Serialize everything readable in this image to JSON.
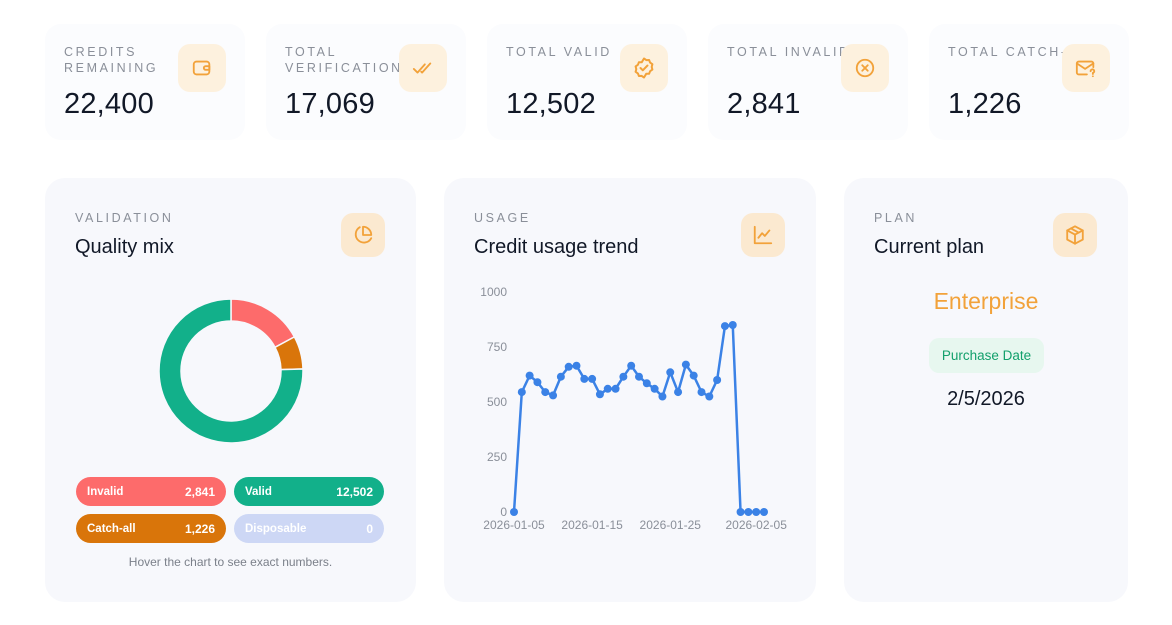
{
  "stats": [
    {
      "label": "CREDITS REMAINING",
      "value": "22,400",
      "icon": "wallet-icon"
    },
    {
      "label": "TOTAL VERIFICATIONS",
      "value": "17,069",
      "icon": "double-check-icon"
    },
    {
      "label": "TOTAL VALID",
      "value": "12,502",
      "icon": "verified-badge-icon"
    },
    {
      "label": "TOTAL INVALID",
      "value": "2,841",
      "icon": "x-circle-icon"
    },
    {
      "label": "TOTAL CATCH-ALL",
      "value": "1,226",
      "icon": "mail-question-icon"
    }
  ],
  "validation": {
    "kicker": "VALIDATION",
    "title": "Quality mix",
    "icon": "pie-chart-icon",
    "legend": [
      {
        "label": "Invalid",
        "value": "2,841",
        "color": "#fd6b6b"
      },
      {
        "label": "Valid",
        "value": "12,502",
        "color": "#12b08a"
      },
      {
        "label": "Catch-all",
        "value": "1,226",
        "color": "#d9750a"
      },
      {
        "label": "Disposable",
        "value": "0",
        "color": "#cdd7f5"
      }
    ],
    "hint": "Hover the chart to see exact numbers."
  },
  "usage": {
    "kicker": "USAGE",
    "title": "Credit usage trend",
    "icon": "line-chart-icon"
  },
  "plan": {
    "kicker": "PLAN",
    "title": "Current plan",
    "icon": "box-icon",
    "name": "Enterprise",
    "purchase_label": "Purchase Date",
    "purchase_date": "2/5/2026"
  },
  "chart_data": [
    {
      "type": "pie",
      "variant": "donut",
      "labels": [
        "Invalid",
        "Catch-all",
        "Valid",
        "Disposable"
      ],
      "values": [
        2841,
        1226,
        12502,
        0
      ],
      "colors": [
        "#fd6b6b",
        "#d9750a",
        "#12b08a",
        "#cdd7f5"
      ]
    },
    {
      "type": "line",
      "x": [
        "2026-01-05",
        "2026-01-06",
        "2026-01-07",
        "2026-01-08",
        "2026-01-09",
        "2026-01-10",
        "2026-01-11",
        "2026-01-12",
        "2026-01-13",
        "2026-01-14",
        "2026-01-15",
        "2026-01-16",
        "2026-01-17",
        "2026-01-18",
        "2026-01-19",
        "2026-01-20",
        "2026-01-21",
        "2026-01-22",
        "2026-01-23",
        "2026-01-24",
        "2026-01-25",
        "2026-01-26",
        "2026-01-27",
        "2026-01-28",
        "2026-01-29",
        "2026-01-30",
        "2026-01-31",
        "2026-02-01",
        "2026-02-02",
        "2026-02-03",
        "2026-02-04",
        "2026-02-05",
        "2026-02-06"
      ],
      "y": [
        0,
        545,
        620,
        590,
        545,
        530,
        615,
        660,
        665,
        605,
        605,
        535,
        560,
        560,
        615,
        665,
        615,
        585,
        560,
        525,
        635,
        545,
        670,
        620,
        545,
        525,
        600,
        845,
        850,
        0,
        0,
        0,
        0
      ],
      "x_ticks": [
        "2026-01-05",
        "2026-01-15",
        "2026-01-25",
        "2026-02-05"
      ],
      "y_ticks": [
        0,
        250,
        500,
        750,
        1000
      ],
      "ylim": [
        0,
        1000
      ],
      "color": "#3b82e6",
      "grid": false
    }
  ]
}
